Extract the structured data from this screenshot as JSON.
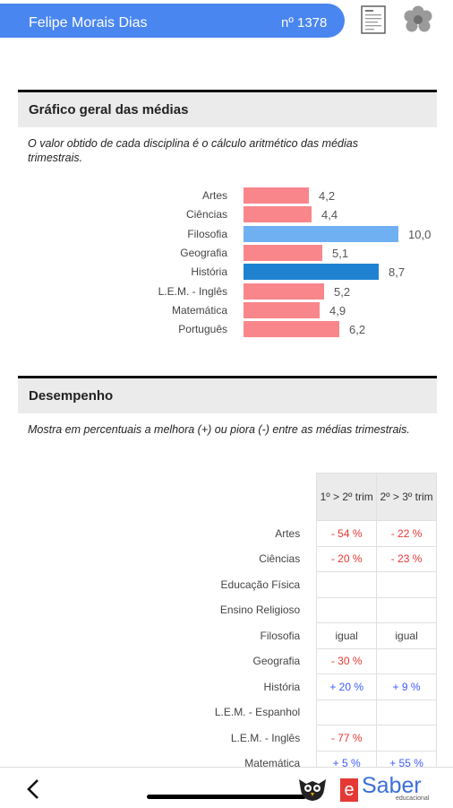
{
  "header": {
    "student_name": "Felipe Morais Dias",
    "student_number": "nº 1378"
  },
  "averages": {
    "title": "Gráfico geral das médias",
    "description": "O valor obtido de cada disciplina é o cálculo aritmético das médias trimestrais.",
    "items": [
      {
        "label": "Artes",
        "value": 4.2,
        "display": "4,2",
        "color": "#f9868a"
      },
      {
        "label": "Ciências",
        "value": 4.4,
        "display": "4,4",
        "color": "#f9868a"
      },
      {
        "label": "Filosofia",
        "value": 10.0,
        "display": "10,0",
        "color": "#6fb0f2"
      },
      {
        "label": "Geografia",
        "value": 5.1,
        "display": "5,1",
        "color": "#f9868a"
      },
      {
        "label": "História",
        "value": 8.7,
        "display": "8,7",
        "color": "#1e82d1"
      },
      {
        "label": "L.E.M. - Inglês",
        "value": 5.2,
        "display": "5,2",
        "color": "#f9868a"
      },
      {
        "label": "Matemática",
        "value": 4.9,
        "display": "4,9",
        "color": "#f9868a"
      },
      {
        "label": "Português",
        "value": 6.2,
        "display": "6,2",
        "color": "#f9868a"
      }
    ]
  },
  "chart_data": {
    "type": "bar",
    "orientation": "horizontal",
    "categories": [
      "Artes",
      "Ciências",
      "Filosofia",
      "Geografia",
      "História",
      "L.E.M. - Inglês",
      "Matemática",
      "Português"
    ],
    "values": [
      4.2,
      4.4,
      10.0,
      5.1,
      8.7,
      5.2,
      4.9,
      6.2
    ],
    "xlim": [
      0,
      10
    ]
  },
  "performance": {
    "title": "Desempenho",
    "description": "Mostra em percentuais a melhora (+) ou piora (-) entre as médias trimestrais.",
    "columns": [
      "1º > 2º trim",
      "2º > 3º trim"
    ],
    "rows": [
      {
        "subject": "Artes",
        "c1": "- 54 %",
        "t1": "neg",
        "c2": "- 22 %",
        "t2": "neg"
      },
      {
        "subject": "Ciências",
        "c1": "- 20 %",
        "t1": "neg",
        "c2": "- 23 %",
        "t2": "neg"
      },
      {
        "subject": "Educação Física",
        "c1": "",
        "t1": "neu",
        "c2": "",
        "t2": "neu"
      },
      {
        "subject": "Ensino Religioso",
        "c1": "",
        "t1": "neu",
        "c2": "",
        "t2": "neu"
      },
      {
        "subject": "Filosofia",
        "c1": "igual",
        "t1": "neu",
        "c2": "igual",
        "t2": "neu"
      },
      {
        "subject": "Geografia",
        "c1": "- 30 %",
        "t1": "neg",
        "c2": "",
        "t2": "neu"
      },
      {
        "subject": "História",
        "c1": "+ 20 %",
        "t1": "pos",
        "c2": "+ 9 %",
        "t2": "pos"
      },
      {
        "subject": "L.E.M. - Espanhol",
        "c1": "",
        "t1": "neu",
        "c2": "",
        "t2": "neu"
      },
      {
        "subject": "L.E.M. - Inglês",
        "c1": "- 77 %",
        "t1": "neg",
        "c2": "",
        "t2": "neu"
      },
      {
        "subject": "Matemática",
        "c1": "+ 5 %",
        "t1": "pos",
        "c2": "+ 55 %",
        "t2": "pos"
      }
    ]
  },
  "footer": {
    "logo_e": "e",
    "logo_saber": "Saber",
    "logo_sub": "educacional"
  },
  "colors": {
    "header": "#4a86f0",
    "negative": "#e53935",
    "positive": "#3d5afe"
  }
}
